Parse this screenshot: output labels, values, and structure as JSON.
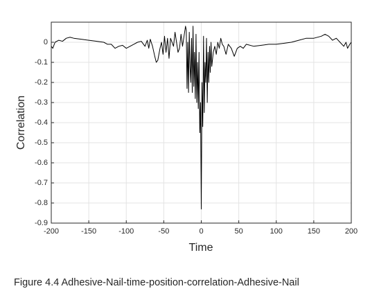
{
  "chart_data": {
    "type": "line",
    "xlabel": "Time",
    "ylabel": "Correlation",
    "caption": "Figure 4.4 Adhesive-Nail-time-position-correlation-Adhesive-Nail",
    "x": [
      -200,
      -198,
      -195,
      -190,
      -185,
      -180,
      -175,
      -170,
      -160,
      -150,
      -140,
      -130,
      -125,
      -120,
      -115,
      -110,
      -105,
      -100,
      -95,
      -90,
      -85,
      -80,
      -75,
      -72,
      -70,
      -68,
      -65,
      -62,
      -60,
      -58,
      -55,
      -53,
      -51,
      -49,
      -47,
      -45,
      -43,
      -41,
      -39,
      -37,
      -35,
      -33,
      -31,
      -29,
      -27,
      -25,
      -23,
      -21,
      -20,
      -19,
      -18,
      -17,
      -16,
      -15,
      -14,
      -13,
      -12,
      -11,
      -10,
      -9,
      -8,
      -7,
      -6,
      -5,
      -4,
      -3,
      -2,
      -1,
      0,
      1,
      2,
      3,
      4,
      5,
      6,
      7,
      8,
      9,
      10,
      11,
      12,
      13,
      14,
      16,
      18,
      20,
      22,
      24,
      26,
      28,
      30,
      33,
      36,
      40,
      44,
      48,
      52,
      56,
      60,
      70,
      80,
      90,
      100,
      110,
      120,
      130,
      140,
      150,
      160,
      165,
      170,
      175,
      180,
      185,
      190,
      193,
      195,
      198,
      200
    ],
    "series": [
      {
        "name": "Correlation",
        "color": "#000000",
        "values": [
          -0.02,
          -0.03,
          0,
          0.01,
          0.005,
          0.02,
          0.025,
          0.02,
          0.015,
          0.01,
          0.005,
          0,
          -0.01,
          -0.01,
          -0.03,
          -0.02,
          -0.015,
          -0.03,
          -0.02,
          -0.01,
          0,
          0.005,
          -0.02,
          0.01,
          -0.03,
          0.015,
          -0.02,
          -0.07,
          -0.1,
          -0.09,
          -0.03,
          0,
          -0.06,
          0.03,
          -0.05,
          0.02,
          -0.08,
          0.02,
          0,
          -0.02,
          0.05,
          0,
          -0.05,
          -0.03,
          0.04,
          -0.02,
          0.03,
          0.08,
          0.06,
          -0.23,
          0,
          -0.25,
          0.05,
          -0.12,
          -0.2,
          0.02,
          -0.25,
          0.08,
          -0.22,
          -0.05,
          -0.28,
          0.04,
          -0.3,
          -0.1,
          -0.33,
          -0.05,
          -0.45,
          -0.3,
          -0.83,
          -0.2,
          -0.42,
          0.03,
          -0.35,
          -0.1,
          -0.2,
          0.02,
          -0.3,
          -0.05,
          -0.2,
          -0.02,
          -0.15,
          0,
          -0.12,
          -0.05,
          -0.02,
          -0.06,
          0,
          -0.03,
          0.02,
          -0.01,
          -0.02,
          -0.06,
          -0.01,
          -0.03,
          -0.07,
          -0.03,
          -0.02,
          -0.03,
          -0.01,
          -0.02,
          -0.015,
          -0.01,
          -0.01,
          -0.005,
          0,
          0.01,
          0.02,
          0.02,
          0.03,
          0.04,
          0.03,
          0.01,
          0.02,
          0,
          -0.02,
          0,
          -0.03,
          -0.01,
          0
        ]
      }
    ],
    "xlim": [
      -200,
      200
    ],
    "xticks": [
      -200,
      -150,
      -100,
      -50,
      0,
      50,
      100,
      150,
      200
    ],
    "ylim": [
      -0.9,
      0.1
    ],
    "yticks": [
      -0.9,
      -0.8,
      -0.7,
      -0.6,
      -0.5,
      -0.4,
      -0.3,
      -0.2,
      -0.1,
      0
    ],
    "grid": true
  }
}
